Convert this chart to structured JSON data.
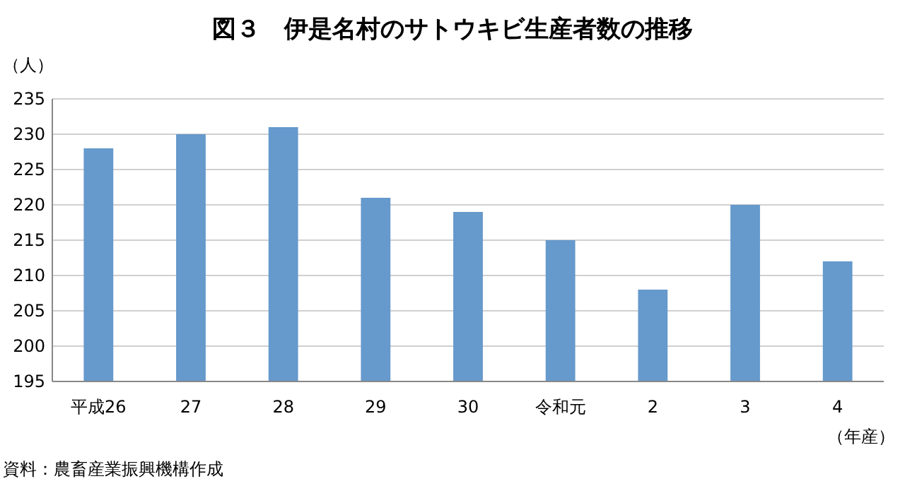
{
  "chart_data": {
    "type": "bar",
    "title": "図３　伊是名村のサトウキビ生産者数の推移",
    "ylabel": "（人）",
    "xlabel": "（年産）",
    "categories": [
      "平成26",
      "27",
      "28",
      "29",
      "30",
      "令和元",
      "2",
      "3",
      "4"
    ],
    "values": [
      228,
      230,
      231,
      221,
      219,
      215,
      208,
      220,
      212
    ],
    "color": "#6699cc",
    "ylim": [
      195,
      235
    ],
    "yticks": [
      195,
      200,
      205,
      210,
      215,
      220,
      225,
      230,
      235
    ],
    "grid": "y",
    "annotations": [
      "資料：農畜産業振興機構作成"
    ]
  }
}
